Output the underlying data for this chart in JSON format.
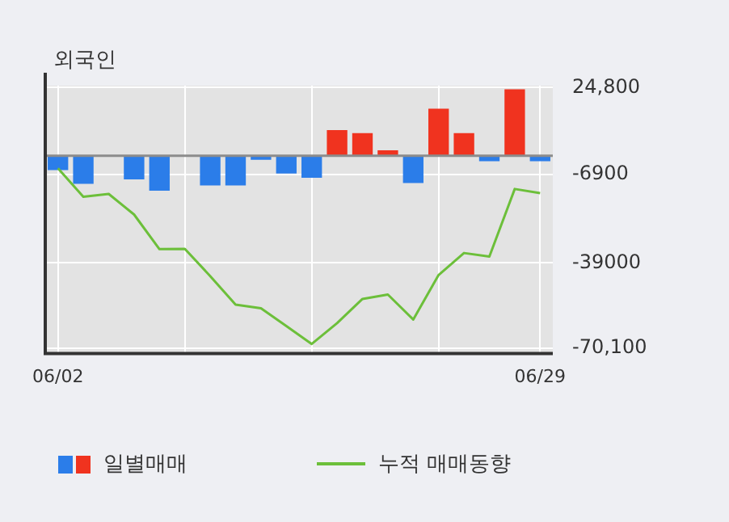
{
  "chart_data": {
    "type": "bar",
    "title": "외국인",
    "categories": [
      "06/02",
      null,
      null,
      null,
      null,
      null,
      null,
      null,
      null,
      null,
      null,
      null,
      null,
      null,
      null,
      null,
      null,
      null,
      null,
      "06/29"
    ],
    "series": [
      {
        "name": "일별매매",
        "colors": [
          "#2b7de9",
          "#2b7de9",
          "#2b7de9",
          "#2b7de9",
          "#2b7de9",
          "#2b7de9",
          "#2b7de9",
          "#2b7de9",
          "#2b7de9",
          "#2b7de9",
          "#2b7de9",
          "#f0331f",
          "#f0331f",
          "#f0331f",
          "#2b7de9",
          "#f0331f",
          "#f0331f",
          "#2b7de9",
          "#f0331f",
          "#2b7de9"
        ],
        "values": [
          -5200,
          -10200,
          0,
          -8600,
          -12700,
          0,
          -10800,
          -10800,
          -1500,
          -6500,
          -8000,
          9300,
          8200,
          2000,
          -9900,
          17100,
          8200,
          -2000,
          24200,
          -2000
        ]
      },
      {
        "name": "누적 매매동향",
        "type": "line",
        "color": "#6cbf3a",
        "values": [
          -4600,
          -14900,
          -13900,
          -21400,
          -34000,
          -33900,
          -43800,
          -54200,
          -55500,
          -62000,
          -68500,
          -60900,
          -52100,
          -50500,
          -59600,
          -43400,
          -35400,
          -36700,
          -12100,
          -13600
        ]
      }
    ],
    "ylim": [
      -72000,
      25500
    ],
    "yticks": [
      {
        "value": 24800,
        "label": "24,800"
      },
      -6900,
      -39000,
      {
        "value": -70100,
        "label": "-70,100"
      }
    ],
    "ref_lines": [
      {
        "axis": "y",
        "value": 0,
        "color": "#8c8c8c"
      }
    ],
    "grid": true,
    "legend": "bottom",
    "marker": "none",
    "line_style": "solid"
  }
}
